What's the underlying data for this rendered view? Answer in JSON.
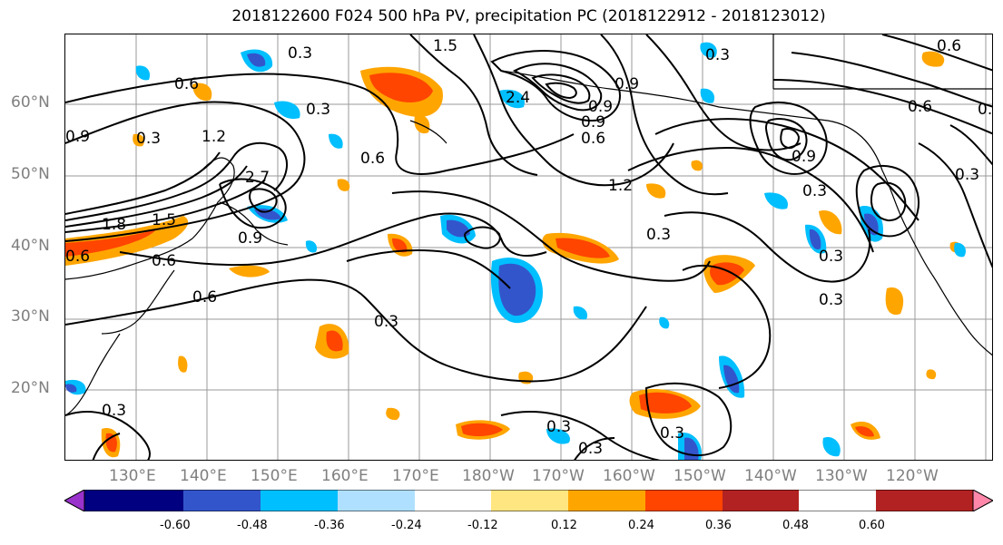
{
  "title": "2018122600 F024 500 hPa PV, precipitation PC (2018122912 - 2018123012)",
  "lat_labels": [
    "60°N",
    "50°N",
    "40°N",
    "30°N",
    "20°N"
  ],
  "lon_labels": [
    "130°E",
    "140°E",
    "150°E",
    "160°E",
    "170°E",
    "180°W",
    "170°W",
    "160°W",
    "150°W",
    "140°W",
    "130°W",
    "120°W"
  ],
  "contour_labels": [
    "0.3",
    "1.5",
    "0.6",
    "0.3",
    "0.6",
    "0.9",
    "0.3",
    "1.2",
    "0.6",
    "2.7",
    "1.8",
    "1.5",
    "0.9",
    "0.6",
    "0.6",
    "0.3",
    "1.2",
    "0.9",
    "0.6",
    "0.9",
    "0.3",
    "0.3",
    "0.3",
    "0.3",
    "0.3",
    "0.3",
    "0.3",
    "0.6",
    "0.3",
    "0.6",
    "0.9",
    "0.3",
    "2.4",
    "0.9",
    "0.6",
    "0.3"
  ],
  "colorbar": {
    "ticks": [
      "-0.60",
      "-0.48",
      "-0.36",
      "-0.24",
      "-0.12",
      "0.12",
      "0.24",
      "0.36",
      "0.48",
      "0.60"
    ],
    "colors": [
      "#9933cc",
      "#000080",
      "#3355cc",
      "#00bfff",
      "#b0e0ff",
      "#ffffff",
      "#ffe680",
      "#ffa500",
      "#ff4500",
      "#b22222",
      "#ff88aa"
    ]
  }
}
